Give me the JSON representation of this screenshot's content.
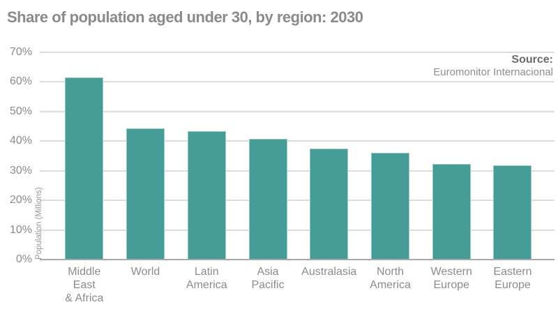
{
  "title": "Share of population aged under 30, by region: 2030",
  "source": {
    "label": "Source:",
    "name": "Euromonitor Internacional"
  },
  "chart_data": {
    "type": "bar",
    "title": "Share of population aged under 30, by region: 2030",
    "categories": [
      "Middle East & Africa",
      "World",
      "Latin America",
      "Asia Pacific",
      "Australasia",
      "North America",
      "Western Europe",
      "Eastern Europe"
    ],
    "category_lines": [
      [
        "Middle",
        "East",
        "& Africa"
      ],
      [
        "World"
      ],
      [
        "Latin",
        "America"
      ],
      [
        "Asia",
        "Pacific"
      ],
      [
        "Australasia"
      ],
      [
        "North",
        "America"
      ],
      [
        "Western",
        "Europe"
      ],
      [
        "Eastern",
        "Europe"
      ]
    ],
    "values": [
      61.4,
      44.4,
      43.4,
      40.8,
      37.5,
      36.1,
      32.4,
      31.8
    ],
    "value_unit": "%",
    "xlabel": "",
    "ylabel": "Population (Millions)",
    "ylim": [
      0,
      70
    ],
    "ytick_values": [
      0,
      10,
      20,
      30,
      40,
      50,
      60,
      70
    ],
    "yticks": [
      "0%",
      "10%",
      "20%",
      "30%",
      "40%",
      "50%",
      "60%",
      "70%"
    ],
    "grid": true,
    "legend": "none",
    "bar_color": "#459b95"
  },
  "colors": {
    "bar": "#459b95",
    "title_text": "#8a8a8a",
    "axis_text": "#8b8b8b",
    "gridline": "#dcdcdc",
    "axis_line": "#a9a9a9",
    "source_label": "#6b6b6b",
    "source_name": "#8d8d8d"
  }
}
